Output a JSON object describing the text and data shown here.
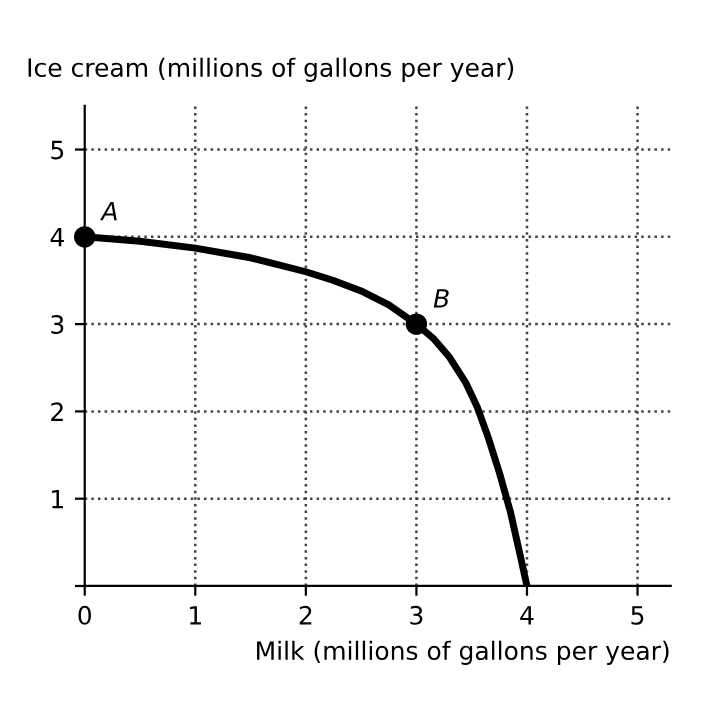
{
  "chart_data": {
    "type": "line",
    "xlabel": "Milk (millions of gallons per year)",
    "ylabel": "Ice cream (millions of gallons per year)",
    "series": [
      {
        "color": "#000000",
        "x": [
          0,
          0.5,
          1,
          1.5,
          2,
          2.25,
          2.5,
          2.75,
          3,
          3.15,
          3.3,
          3.45,
          3.55,
          3.65,
          3.75,
          3.85,
          3.93,
          4
        ],
        "values": [
          4,
          3.95,
          3.87,
          3.76,
          3.6,
          3.5,
          3.38,
          3.22,
          3,
          2.84,
          2.62,
          2.32,
          2.05,
          1.7,
          1.3,
          0.85,
          0.4,
          0
        ],
        "marker": "none"
      },
      {
        "type": "scatter",
        "color": "#000000",
        "x": [
          0,
          3
        ],
        "values": [
          4,
          3
        ],
        "marker": "circle"
      }
    ],
    "annotations": [
      {
        "text": "A",
        "x": 0,
        "y": 4
      },
      {
        "text": "B",
        "x": 3,
        "y": 3
      }
    ],
    "xlim": [
      0,
      5.3
    ],
    "ylim": [
      0,
      5.5
    ],
    "xticks": [
      0,
      1,
      2,
      3,
      4,
      5
    ],
    "yticks": [
      {
        "value": 0,
        "label": null
      },
      1,
      2,
      3,
      4,
      5
    ],
    "grid": true,
    "line_style": "solid"
  }
}
